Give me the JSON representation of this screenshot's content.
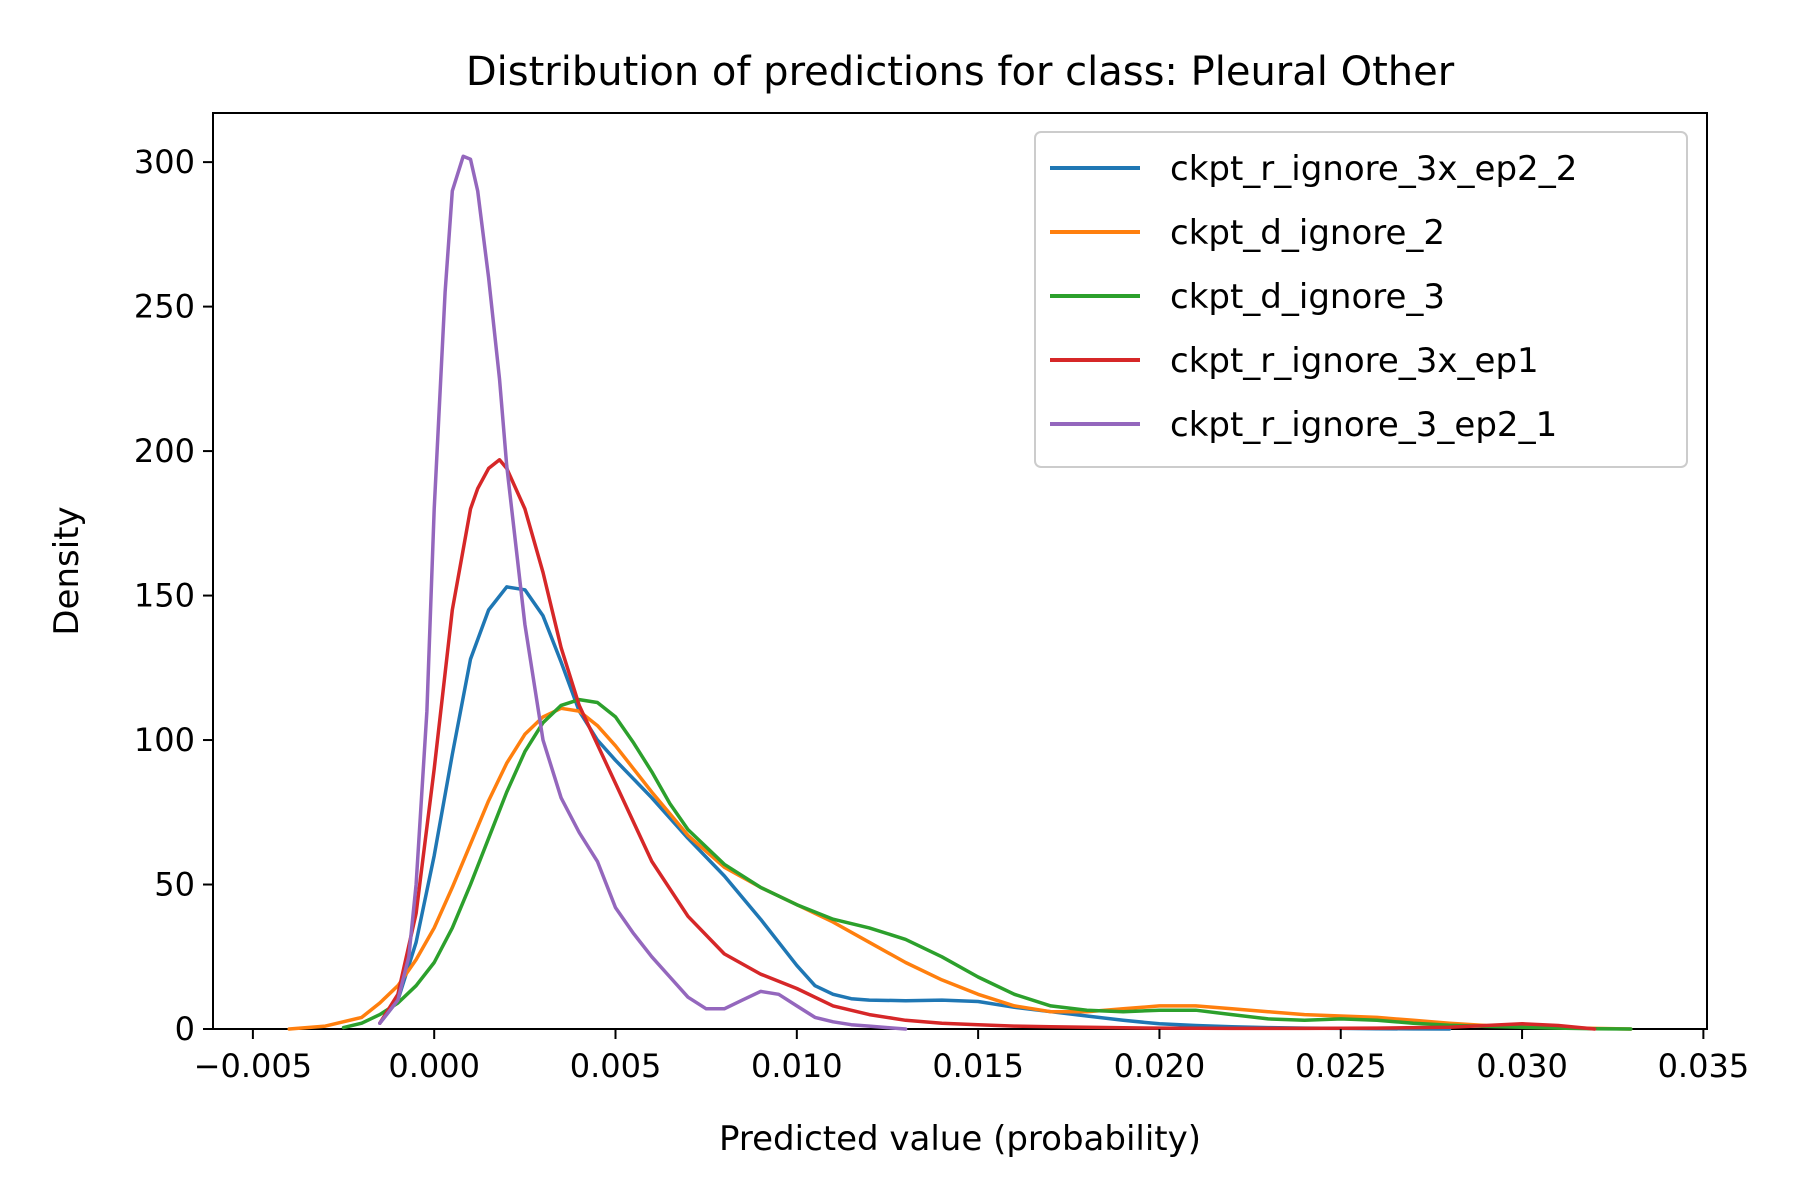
{
  "chart_data": {
    "type": "line",
    "title": "Distribution of predictions for class: Pleural Other",
    "xlabel": "Predicted value (probability)",
    "ylabel": "Density",
    "xlim": [
      -0.0061,
      0.0351
    ],
    "ylim": [
      0,
      317
    ],
    "xticks": [
      -0.005,
      0.0,
      0.005,
      0.01,
      0.015,
      0.02,
      0.025,
      0.03,
      0.035
    ],
    "xtick_labels": [
      "−0.005",
      "0.000",
      "0.005",
      "0.010",
      "0.015",
      "0.020",
      "0.025",
      "0.030",
      "0.035"
    ],
    "yticks": [
      0,
      50,
      100,
      150,
      200,
      250,
      300
    ],
    "ytick_labels": [
      "0",
      "50",
      "100",
      "150",
      "200",
      "250",
      "300"
    ],
    "grid": false,
    "legend_position": "top-right",
    "series": [
      {
        "name": "ckpt_r_ignore_3x_ep2_2",
        "color": "#1f77b4",
        "x": [
          -0.0015,
          -0.001,
          -0.0005,
          0.0,
          0.0005,
          0.001,
          0.0015,
          0.002,
          0.0025,
          0.003,
          0.0035,
          0.004,
          0.0045,
          0.005,
          0.006,
          0.007,
          0.008,
          0.009,
          0.01,
          0.0105,
          0.011,
          0.0115,
          0.012,
          0.013,
          0.014,
          0.015,
          0.016,
          0.017,
          0.018,
          0.019,
          0.02,
          0.021,
          0.022,
          0.023,
          0.024,
          0.025,
          0.026,
          0.027,
          0.028
        ],
        "y": [
          2,
          10,
          30,
          60,
          95,
          128,
          145,
          153,
          152,
          143,
          127,
          110,
          100,
          93,
          80,
          66,
          53,
          38,
          22,
          15,
          12,
          10.5,
          10,
          9.8,
          10,
          9.5,
          7.5,
          6,
          4.5,
          3,
          1.8,
          1.2,
          0.8,
          0.5,
          0.3,
          0.2,
          0.1,
          0.05,
          0
        ]
      },
      {
        "name": "ckpt_d_ignore_2",
        "color": "#ff7f0e",
        "x": [
          -0.004,
          -0.003,
          -0.002,
          -0.0015,
          -0.001,
          -0.0005,
          0.0,
          0.0005,
          0.001,
          0.0015,
          0.002,
          0.0025,
          0.003,
          0.0035,
          0.004,
          0.0045,
          0.005,
          0.0055,
          0.006,
          0.007,
          0.008,
          0.009,
          0.01,
          0.011,
          0.012,
          0.013,
          0.014,
          0.015,
          0.016,
          0.017,
          0.018,
          0.019,
          0.02,
          0.021,
          0.022,
          0.023,
          0.024,
          0.025,
          0.026,
          0.027,
          0.028,
          0.029,
          0.03,
          0.031,
          0.032,
          0.033
        ],
        "y": [
          0,
          1,
          4,
          9,
          15,
          24,
          35,
          49,
          64,
          79,
          92,
          102,
          108,
          111,
          110,
          105,
          98,
          90,
          82,
          67,
          56,
          49,
          43,
          37,
          30,
          23,
          17,
          12,
          8,
          6,
          6,
          7,
          8,
          8,
          7,
          6,
          5,
          4.5,
          4,
          3,
          2,
          1.2,
          0.8,
          0.5,
          0.2,
          0
        ]
      },
      {
        "name": "ckpt_d_ignore_3",
        "color": "#2ca02c",
        "x": [
          -0.0025,
          -0.002,
          -0.0015,
          -0.001,
          -0.0005,
          0.0,
          0.0005,
          0.001,
          0.0015,
          0.002,
          0.0025,
          0.003,
          0.0035,
          0.004,
          0.0045,
          0.005,
          0.0055,
          0.006,
          0.0065,
          0.007,
          0.008,
          0.009,
          0.01,
          0.011,
          0.012,
          0.013,
          0.014,
          0.015,
          0.016,
          0.017,
          0.018,
          0.019,
          0.02,
          0.021,
          0.022,
          0.023,
          0.024,
          0.025,
          0.026,
          0.027,
          0.028,
          0.029,
          0.03,
          0.031,
          0.032,
          0.033
        ],
        "y": [
          0.5,
          2,
          5,
          9,
          15,
          23,
          35,
          50,
          66,
          82,
          96,
          106,
          112,
          114,
          113,
          108,
          99,
          89,
          78,
          69,
          57,
          49,
          43,
          38,
          35,
          31,
          25,
          18,
          12,
          8,
          6.5,
          6,
          6.5,
          6.5,
          5,
          3.5,
          3,
          3.5,
          3,
          2,
          1.3,
          0.9,
          0.6,
          0.3,
          0.1,
          0
        ]
      },
      {
        "name": "ckpt_r_ignore_3x_ep1",
        "color": "#d62728",
        "x": [
          -0.0015,
          -0.001,
          -0.0005,
          0.0,
          0.0005,
          0.001,
          0.0012,
          0.0015,
          0.0018,
          0.002,
          0.0025,
          0.003,
          0.0035,
          0.004,
          0.005,
          0.006,
          0.007,
          0.008,
          0.009,
          0.01,
          0.011,
          0.012,
          0.013,
          0.014,
          0.015,
          0.016,
          0.017,
          0.018,
          0.019,
          0.02,
          0.022,
          0.024,
          0.026,
          0.028,
          0.029,
          0.03,
          0.031,
          0.032
        ],
        "y": [
          2,
          12,
          40,
          90,
          145,
          180,
          187,
          194,
          197,
          194,
          180,
          158,
          132,
          112,
          85,
          58,
          39,
          26,
          19,
          14,
          8,
          5,
          3,
          2,
          1.5,
          1,
          0.8,
          0.6,
          0.4,
          0.3,
          0.2,
          0.2,
          0.3,
          0.6,
          1.2,
          1.8,
          1.2,
          0
        ]
      },
      {
        "name": "ckpt_r_ignore_3_ep2_1",
        "color": "#9467bd",
        "x": [
          -0.0015,
          -0.001,
          -0.0007,
          -0.0005,
          -0.0002,
          0.0,
          0.0003,
          0.0005,
          0.0008,
          0.001,
          0.0012,
          0.0015,
          0.0018,
          0.002,
          0.0025,
          0.003,
          0.0035,
          0.004,
          0.0045,
          0.005,
          0.0055,
          0.006,
          0.0065,
          0.007,
          0.0075,
          0.008,
          0.0085,
          0.009,
          0.0095,
          0.01,
          0.0105,
          0.011,
          0.0115,
          0.012,
          0.0125,
          0.013
        ],
        "y": [
          2,
          10,
          25,
          50,
          110,
          180,
          255,
          290,
          302,
          301,
          290,
          260,
          225,
          195,
          140,
          100,
          80,
          68,
          58,
          42,
          33,
          25,
          18,
          11,
          7,
          7,
          10,
          13,
          12,
          8,
          4,
          2.5,
          1.5,
          1,
          0.5,
          0
        ]
      }
    ]
  }
}
